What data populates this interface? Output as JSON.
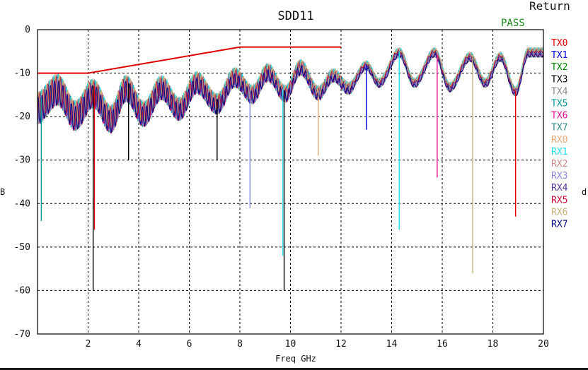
{
  "chart_data": {
    "type": "line",
    "title": "SDD11",
    "corner_text": "Return",
    "status": "PASS",
    "xlabel": "Freq GHz",
    "ylabel_left": "B",
    "ylabel_right": "d",
    "xlim": [
      0,
      20
    ],
    "ylim": [
      -70,
      0
    ],
    "xticks": [
      2,
      4,
      6,
      8,
      10,
      12,
      14,
      16,
      18,
      20
    ],
    "yticks": [
      0,
      -10,
      -20,
      -30,
      -40,
      -50,
      -60,
      -70
    ],
    "grid": true,
    "grid_style": "dashed",
    "legend_position": "right",
    "limit_line": {
      "color": "#e00000",
      "points": [
        [
          0,
          -10
        ],
        [
          2,
          -10
        ],
        [
          8,
          -4
        ],
        [
          12,
          -4
        ]
      ]
    },
    "series": [
      {
        "name": "TX0",
        "color": "#e00000"
      },
      {
        "name": "TX1",
        "color": "#0000dd"
      },
      {
        "name": "TX2",
        "color": "#008800"
      },
      {
        "name": "TX3",
        "color": "#000000"
      },
      {
        "name": "TX4",
        "color": "#888888"
      },
      {
        "name": "TX5",
        "color": "#009999"
      },
      {
        "name": "TX6",
        "color": "#ee1199"
      },
      {
        "name": "TX7",
        "color": "#338888"
      },
      {
        "name": "RX0",
        "color": "#e8a878"
      },
      {
        "name": "RX1",
        "color": "#22ddee"
      },
      {
        "name": "RX2",
        "color": "#cc8888"
      },
      {
        "name": "RX3",
        "color": "#8888dd"
      },
      {
        "name": "RX4",
        "color": "#553399"
      },
      {
        "name": "RX5",
        "color": "#cc0033"
      },
      {
        "name": "RX6",
        "color": "#c4b078"
      },
      {
        "name": "RX7",
        "color": "#000080"
      }
    ],
    "envelope_x": [
      0,
      0.8,
      1.5,
      2.2,
      2.9,
      3.5,
      4.2,
      4.9,
      5.6,
      6.3,
      7.1,
      7.8,
      8.5,
      9.1,
      9.8,
      10.4,
      11.1,
      11.7,
      12.3,
      13.0,
      13.5,
      14.3,
      14.9,
      15.7,
      16.3,
      17.1,
      17.7,
      18.3,
      18.9,
      19.4,
      20
    ],
    "envelope_y": [
      -16,
      -12,
      -18,
      -13,
      -19,
      -12,
      -18,
      -12,
      -17,
      -11,
      -16,
      -10,
      -14,
      -9,
      -14,
      -8,
      -14,
      -10,
      -13,
      -8,
      -12,
      -5,
      -12,
      -5,
      -13,
      -6,
      -12,
      -6,
      -14,
      -5,
      -5
    ],
    "dips": [
      {
        "x": 0.15,
        "y": -44,
        "series": "TX5"
      },
      {
        "x": 2.2,
        "y": -60,
        "series": "TX3"
      },
      {
        "x": 2.25,
        "y": -46,
        "series": "TX0"
      },
      {
        "x": 3.6,
        "y": -30,
        "series": "TX3"
      },
      {
        "x": 7.1,
        "y": -30,
        "series": "TX3"
      },
      {
        "x": 8.4,
        "y": -41,
        "series": "RX3"
      },
      {
        "x": 9.7,
        "y": -52,
        "series": "RX1"
      },
      {
        "x": 9.75,
        "y": -60,
        "series": "TX3"
      },
      {
        "x": 11.1,
        "y": -29,
        "series": "RX0"
      },
      {
        "x": 13.0,
        "y": -23,
        "series": "TX1"
      },
      {
        "x": 14.3,
        "y": -46,
        "series": "RX1"
      },
      {
        "x": 15.8,
        "y": -34,
        "series": "TX6"
      },
      {
        "x": 17.2,
        "y": -56,
        "series": "RX6"
      },
      {
        "x": 18.9,
        "y": -43,
        "series": "TX0"
      }
    ]
  }
}
